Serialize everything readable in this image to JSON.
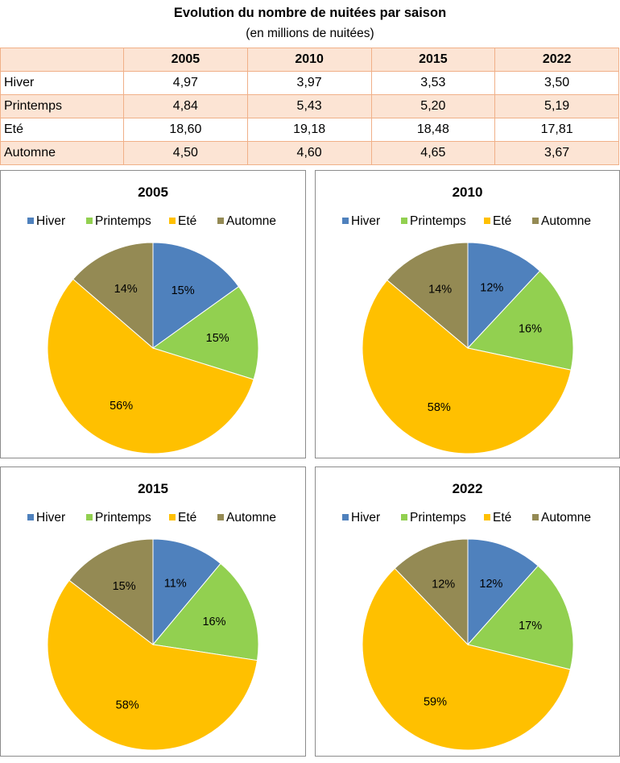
{
  "table": {
    "title": "Evolution du nombre de nuitées par saison",
    "subtitle": "(en millions de nuitées)",
    "headers": [
      "",
      "2005",
      "2010",
      "2015",
      "2022"
    ],
    "rows": [
      {
        "label": "Hiver",
        "values": [
          "4,97",
          "3,97",
          "3,53",
          "3,50"
        ]
      },
      {
        "label": "Printemps",
        "values": [
          "4,84",
          "5,43",
          "5,20",
          "5,19"
        ]
      },
      {
        "label": "Eté",
        "values": [
          "18,60",
          "19,18",
          "18,48",
          "17,81"
        ]
      },
      {
        "label": "Automne",
        "values": [
          "4,50",
          "4,60",
          "4,65",
          "3,67"
        ]
      }
    ]
  },
  "colors": {
    "Hiver": "#4f81bd",
    "Printemps": "#92d050",
    "Eté": "#ffc000",
    "Automne": "#948a54",
    "table_border": "#f0b088",
    "table_shade": "#fce4d4"
  },
  "chart_data": [
    {
      "type": "pie",
      "title": "2005",
      "labels": [
        "Hiver",
        "Printemps",
        "Eté",
        "Automne"
      ],
      "values": [
        4.97,
        4.84,
        18.6,
        4.5
      ],
      "data_labels": [
        "15%",
        "15%",
        "56%",
        "14%"
      ]
    },
    {
      "type": "pie",
      "title": "2010",
      "labels": [
        "Hiver",
        "Printemps",
        "Eté",
        "Automne"
      ],
      "values": [
        3.97,
        5.43,
        19.18,
        4.6
      ],
      "data_labels": [
        "12%",
        "16%",
        "58%",
        "14%"
      ]
    },
    {
      "type": "pie",
      "title": "2015",
      "labels": [
        "Hiver",
        "Printemps",
        "Eté",
        "Automne"
      ],
      "values": [
        3.53,
        5.2,
        18.48,
        4.65
      ],
      "data_labels": [
        "11%",
        "16%",
        "58%",
        "15%"
      ]
    },
    {
      "type": "pie",
      "title": "2022",
      "labels": [
        "Hiver",
        "Printemps",
        "Eté",
        "Automne"
      ],
      "values": [
        3.5,
        5.19,
        17.81,
        3.67
      ],
      "data_labels": [
        "12%",
        "17%",
        "59%",
        "12%"
      ]
    }
  ]
}
